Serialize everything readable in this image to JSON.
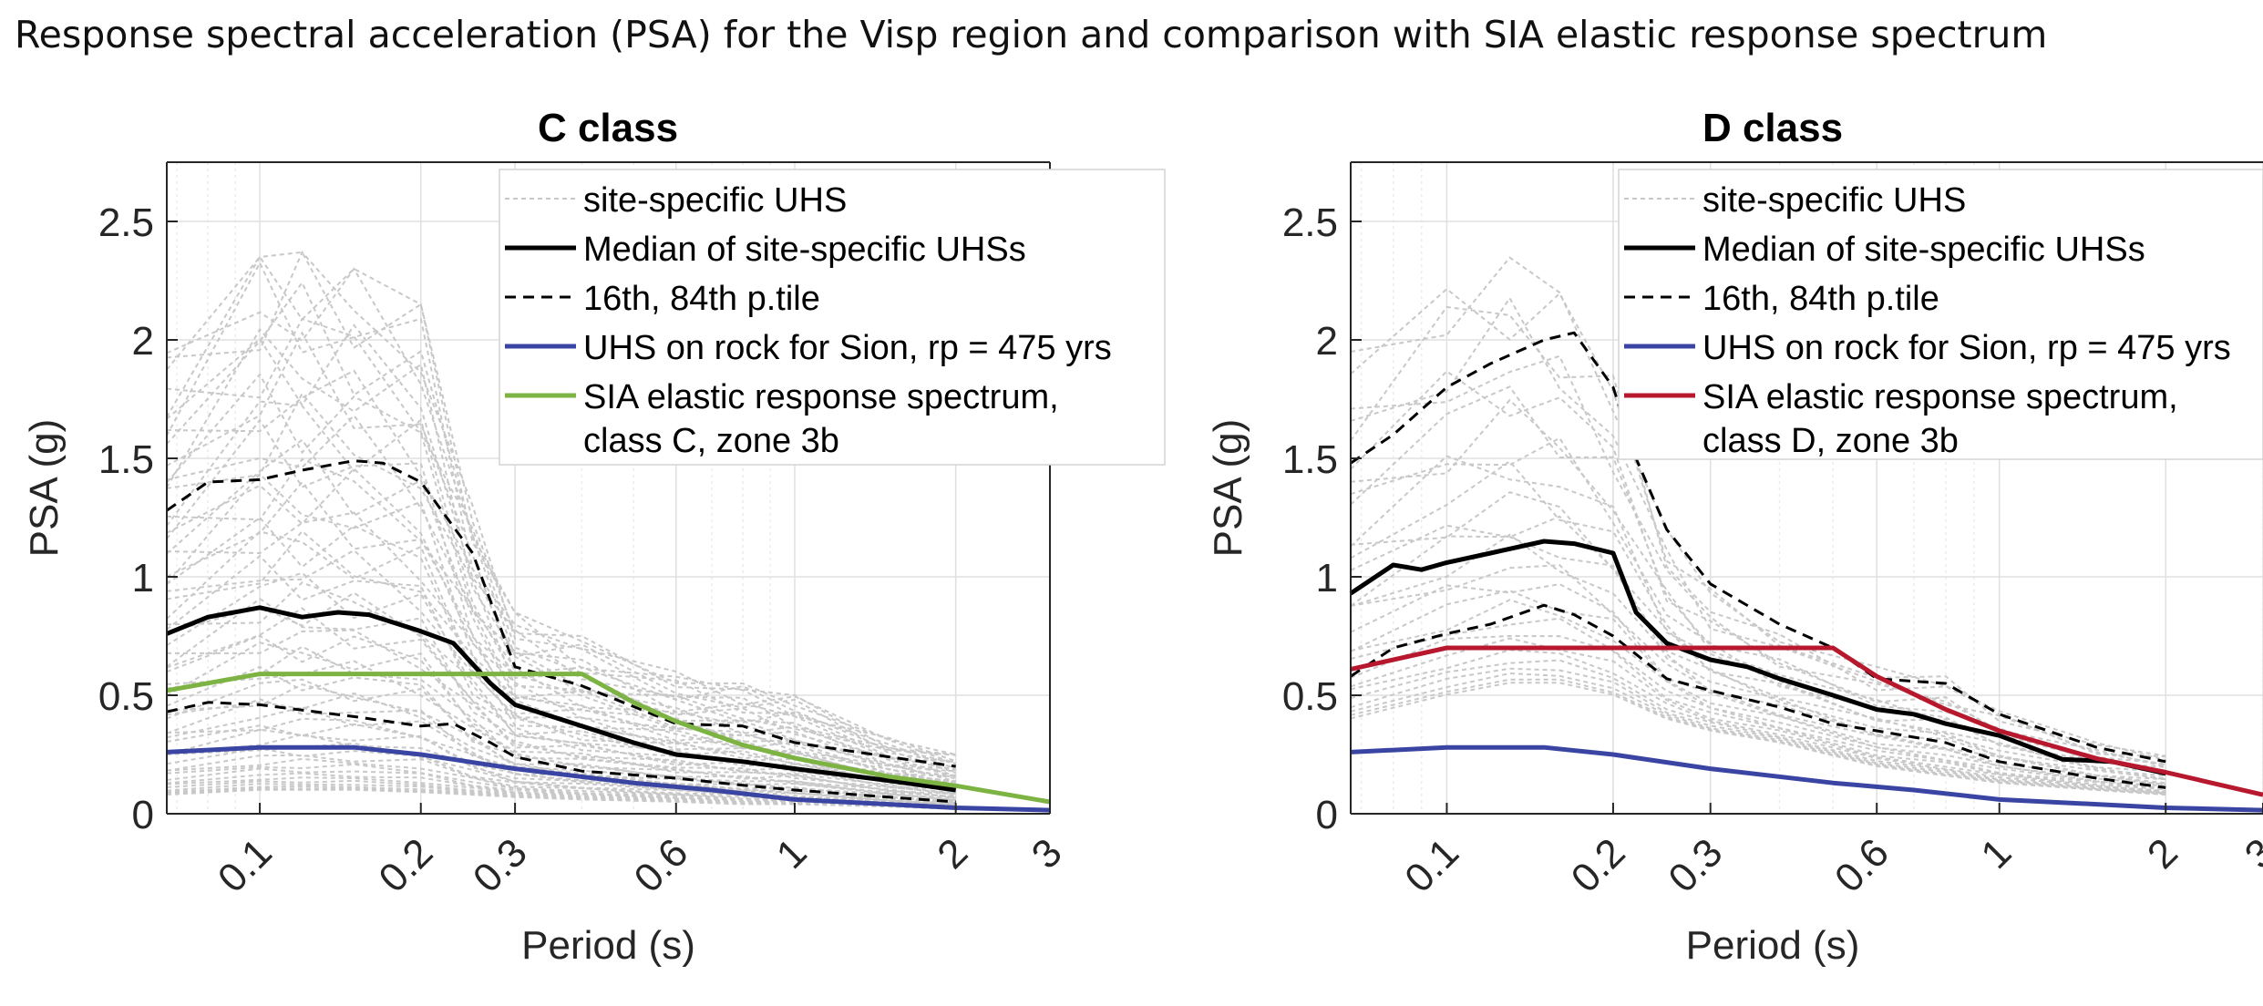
{
  "figure_title": "Response spectral acceleration (PSA) for the Visp region and comparison with SIA elastic response spectrum",
  "colors": {
    "uhs_gray": "#c8c8c8",
    "median": "#000000",
    "percentile": "#000000",
    "rock_blue": "#3a45a3",
    "sia_green": "#7cb342",
    "sia_red": "#b8182d",
    "grid": "#e0e0e0",
    "axis": "#262626"
  },
  "chart_data": [
    {
      "type": "line",
      "title": "C class",
      "xlabel": "Period (s)",
      "ylabel": "PSA (g)",
      "xscale": "log",
      "xlim": [
        0.067,
        3
      ],
      "ylim": [
        0,
        2.75
      ],
      "xticks": [
        0.1,
        0.2,
        0.3,
        0.6,
        1,
        2,
        3
      ],
      "xtick_labels": [
        "0.1",
        "0.2",
        "0.3",
        "0.6",
        "1",
        "2",
        "3"
      ],
      "yticks": [
        0,
        0.5,
        1,
        1.5,
        2,
        2.5
      ],
      "ytick_labels": [
        "0",
        "0.5",
        "1",
        "1.5",
        "2",
        "2.5"
      ],
      "grid": true,
      "legend_position": "top-right",
      "legend": [
        {
          "label": "site-specific UHS",
          "style": "dotted-gray"
        },
        {
          "label": "Median of site-specific UHSs",
          "style": "solid-black"
        },
        {
          "label": "16th, 84th p.tile",
          "style": "dashed-black"
        },
        {
          "label": "UHS on rock for Sion, rp = 475 yrs",
          "style": "solid-blue"
        },
        {
          "label": "SIA elastic response spectrum,",
          "label2": "class C, zone 3b",
          "style": "solid-green"
        }
      ],
      "uhs_envelope": {
        "x": [
          0.067,
          0.1,
          0.12,
          0.15,
          0.2,
          0.25,
          0.3,
          0.4,
          0.6,
          0.8,
          1.0,
          1.5,
          2.0
        ],
        "upper": [
          1.95,
          2.35,
          2.37,
          2.3,
          2.15,
          1.3,
          0.85,
          0.75,
          0.6,
          0.55,
          0.5,
          0.32,
          0.25
        ],
        "lower": [
          0.08,
          0.1,
          0.1,
          0.1,
          0.09,
          0.08,
          0.07,
          0.06,
          0.05,
          0.04,
          0.04,
          0.03,
          0.02
        ]
      },
      "series": [
        {
          "name": "Median of site-specific UHSs",
          "color": "#000000",
          "style": "solid",
          "x": [
            0.067,
            0.08,
            0.1,
            0.12,
            0.14,
            0.16,
            0.2,
            0.23,
            0.27,
            0.3,
            0.4,
            0.5,
            0.6,
            0.8,
            1.0,
            1.5,
            2.0
          ],
          "y": [
            0.76,
            0.83,
            0.87,
            0.83,
            0.85,
            0.84,
            0.77,
            0.72,
            0.55,
            0.46,
            0.37,
            0.3,
            0.25,
            0.22,
            0.19,
            0.14,
            0.1
          ]
        },
        {
          "name": "84th p.tile",
          "color": "#000000",
          "style": "dashed",
          "x": [
            0.067,
            0.08,
            0.1,
            0.12,
            0.15,
            0.17,
            0.2,
            0.25,
            0.3,
            0.4,
            0.6,
            0.8,
            1.0,
            1.5,
            2.0
          ],
          "y": [
            1.28,
            1.4,
            1.41,
            1.45,
            1.49,
            1.48,
            1.4,
            1.1,
            0.62,
            0.54,
            0.38,
            0.37,
            0.3,
            0.24,
            0.2
          ]
        },
        {
          "name": "16th p.tile",
          "color": "#000000",
          "style": "dashed",
          "x": [
            0.067,
            0.08,
            0.1,
            0.15,
            0.2,
            0.23,
            0.27,
            0.3,
            0.4,
            0.6,
            0.8,
            1.0,
            1.5,
            2.0
          ],
          "y": [
            0.43,
            0.47,
            0.46,
            0.41,
            0.37,
            0.38,
            0.3,
            0.24,
            0.18,
            0.15,
            0.12,
            0.1,
            0.07,
            0.05
          ]
        },
        {
          "name": "UHS on rock for Sion, rp = 475 yrs",
          "color": "#3a45a3",
          "style": "solid",
          "x": [
            0.067,
            0.1,
            0.15,
            0.2,
            0.3,
            0.5,
            0.7,
            1.0,
            1.5,
            2.0,
            3.0
          ],
          "y": [
            0.26,
            0.28,
            0.28,
            0.25,
            0.19,
            0.13,
            0.1,
            0.06,
            0.04,
            0.025,
            0.015
          ]
        },
        {
          "name": "SIA elastic response spectrum, class C, zone 3b",
          "color": "#7cb342",
          "style": "solid",
          "x": [
            0.067,
            0.1,
            0.2,
            0.3,
            0.4,
            0.5,
            0.6,
            0.8,
            1.0,
            1.5,
            2.0,
            3.0
          ],
          "y": [
            0.52,
            0.59,
            0.59,
            0.59,
            0.59,
            0.47,
            0.39,
            0.29,
            0.235,
            0.157,
            0.118,
            0.05
          ]
        }
      ]
    },
    {
      "type": "line",
      "title": "D class",
      "xlabel": "Period (s)",
      "ylabel": "PSA (g)",
      "xscale": "log",
      "xlim": [
        0.067,
        3
      ],
      "ylim": [
        0,
        2.75
      ],
      "xticks": [
        0.1,
        0.2,
        0.3,
        0.6,
        1,
        2,
        3
      ],
      "xtick_labels": [
        "0.1",
        "0.2",
        "0.3",
        "0.6",
        "1",
        "2",
        "3"
      ],
      "yticks": [
        0,
        0.5,
        1,
        1.5,
        2,
        2.5
      ],
      "ytick_labels": [
        "0",
        "0.5",
        "1",
        "1.5",
        "2",
        "2.5"
      ],
      "grid": true,
      "legend_position": "top-right",
      "legend": [
        {
          "label": "site-specific UHS",
          "style": "dotted-gray"
        },
        {
          "label": "Median of site-specific UHSs",
          "style": "solid-black"
        },
        {
          "label": "16th, 84th p.tile",
          "style": "dashed-black"
        },
        {
          "label": "UHS on rock for Sion, rp = 475 yrs",
          "style": "solid-blue"
        },
        {
          "label": "SIA elastic response spectrum,",
          "label2": "class D, zone 3b",
          "style": "solid-red"
        }
      ],
      "uhs_envelope": {
        "x": [
          0.067,
          0.1,
          0.13,
          0.16,
          0.2,
          0.25,
          0.3,
          0.4,
          0.6,
          0.8,
          1.0,
          1.5,
          2.0
        ],
        "upper": [
          1.95,
          2.25,
          2.35,
          2.2,
          1.9,
          1.2,
          0.95,
          0.78,
          0.62,
          0.58,
          0.45,
          0.3,
          0.25
        ],
        "lower": [
          0.4,
          0.5,
          0.55,
          0.55,
          0.5,
          0.4,
          0.35,
          0.3,
          0.2,
          0.16,
          0.13,
          0.1,
          0.08
        ]
      },
      "series": [
        {
          "name": "Median of site-specific UHSs",
          "color": "#000000",
          "style": "solid",
          "x": [
            0.067,
            0.08,
            0.09,
            0.1,
            0.12,
            0.15,
            0.17,
            0.2,
            0.22,
            0.25,
            0.3,
            0.35,
            0.4,
            0.5,
            0.6,
            0.7,
            0.8,
            1.0,
            1.3,
            1.6,
            2.0
          ],
          "y": [
            0.93,
            1.05,
            1.03,
            1.06,
            1.1,
            1.15,
            1.14,
            1.1,
            0.85,
            0.72,
            0.65,
            0.62,
            0.57,
            0.5,
            0.44,
            0.42,
            0.38,
            0.33,
            0.23,
            0.22,
            0.17
          ]
        },
        {
          "name": "84th p.tile",
          "color": "#000000",
          "style": "dashed",
          "x": [
            0.067,
            0.08,
            0.1,
            0.12,
            0.15,
            0.17,
            0.2,
            0.22,
            0.25,
            0.3,
            0.4,
            0.5,
            0.6,
            0.8,
            1.0,
            1.5,
            2.0
          ],
          "y": [
            1.48,
            1.6,
            1.8,
            1.9,
            2.0,
            2.03,
            1.8,
            1.5,
            1.2,
            0.97,
            0.8,
            0.7,
            0.57,
            0.55,
            0.42,
            0.28,
            0.22
          ]
        },
        {
          "name": "16th p.tile",
          "color": "#000000",
          "style": "dashed",
          "x": [
            0.067,
            0.08,
            0.1,
            0.12,
            0.15,
            0.17,
            0.2,
            0.25,
            0.3,
            0.4,
            0.5,
            0.6,
            0.8,
            1.0,
            1.5,
            2.0
          ],
          "y": [
            0.58,
            0.7,
            0.76,
            0.8,
            0.88,
            0.84,
            0.75,
            0.57,
            0.52,
            0.45,
            0.38,
            0.35,
            0.3,
            0.22,
            0.15,
            0.11
          ]
        },
        {
          "name": "UHS on rock for Sion, rp = 475 yrs",
          "color": "#3a45a3",
          "style": "solid",
          "x": [
            0.067,
            0.1,
            0.15,
            0.2,
            0.3,
            0.5,
            0.7,
            1.0,
            1.5,
            2.0,
            3.0
          ],
          "y": [
            0.26,
            0.28,
            0.28,
            0.25,
            0.19,
            0.13,
            0.1,
            0.06,
            0.04,
            0.025,
            0.015
          ]
        },
        {
          "name": "SIA elastic response spectrum, class D, zone 3b",
          "color": "#b8182d",
          "style": "solid",
          "x": [
            0.067,
            0.1,
            0.2,
            0.3,
            0.4,
            0.5,
            0.6,
            0.8,
            1.0,
            1.5,
            2.0,
            3.0
          ],
          "y": [
            0.61,
            0.7,
            0.7,
            0.7,
            0.7,
            0.7,
            0.58,
            0.44,
            0.35,
            0.233,
            0.175,
            0.08
          ]
        }
      ]
    }
  ]
}
